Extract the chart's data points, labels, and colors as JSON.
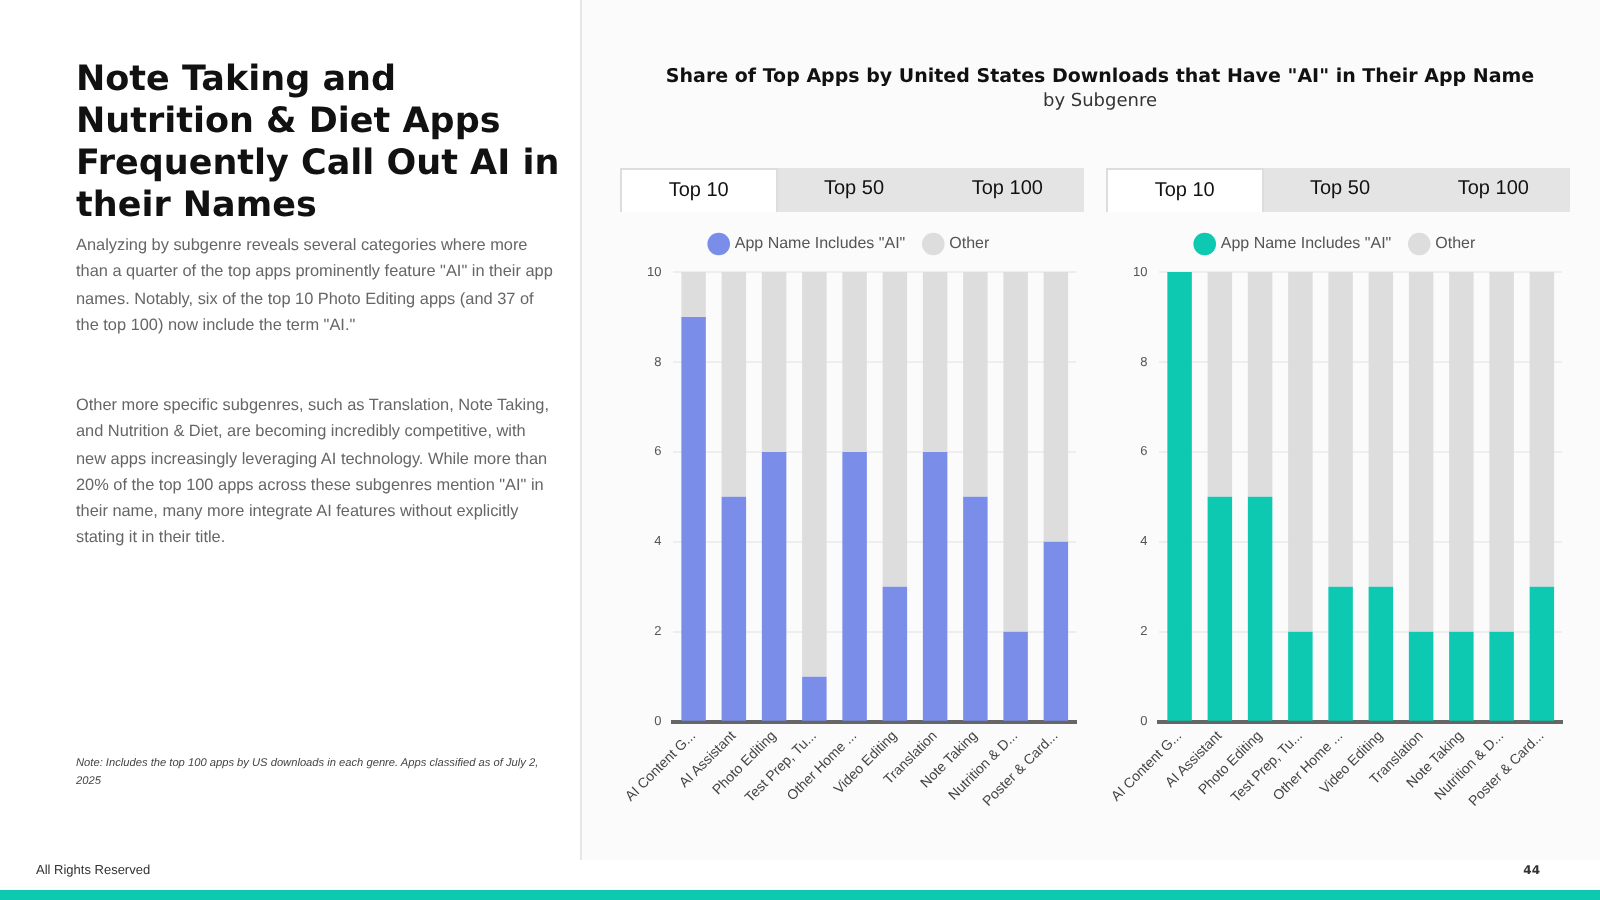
{
  "chart_data": [
    {
      "type": "other",
      "title": "Note Taking and Nutrition & Diet Apps Frequently Call Out AI in their Names",
      "annotations": [
        "Analyzing by subgenre reveals several categories where more than a quarter of the top apps prominently feature \"AI\" in their app names. Notably, six of the top 10 Photo Editing apps (and 37 of the top 100) now include the term \"AI.\"",
        "Other more specific subgenres, such as Translation, Note Taking, and Nutrition & Diet, are becoming incredibly competitive, with new apps increasingly leveraging AI technology. While more than 20% of the top 100 apps across these subgenres mention \"AI\" in their name, many more integrate AI features without explicitly stating it in their title.",
        "Note: Includes the top 100 apps by US downloads in each genre. Apps classified as of July 2, 2025",
        "All Rights Reserved",
        "44"
      ]
    },
    {
      "type": "other",
      "title": "Share of Top Apps by United States Downloads that Have \"AI\" in Their App Name",
      "subtitle": "by Subgenre"
    },
    {
      "type": "bar",
      "stacked": true,
      "categories": [
        "AI Content G...",
        "AI Assistant",
        "Photo Editing",
        "Test Prep, Tu...",
        "Other Home ...",
        "Video Editing",
        "Translation",
        "Note Taking",
        "Nutrition & D...",
        "Poster & Card..."
      ],
      "series": [
        {
          "name": "App Name Includes \"AI\"",
          "color": "#7a8ee9",
          "values": [
            9,
            5,
            6,
            1,
            6,
            3,
            6,
            5,
            2,
            4
          ]
        },
        {
          "name": "Other",
          "color": "#dddddd",
          "values": [
            1,
            5,
            4,
            9,
            4,
            7,
            4,
            5,
            8,
            6
          ]
        }
      ],
      "ylim": [
        0,
        10
      ],
      "yticks": [
        0,
        2,
        4,
        6,
        8,
        10
      ],
      "grid": "y",
      "legend": "top",
      "annotations": [
        "Top 10",
        "Top 50",
        "Top 100"
      ]
    },
    {
      "type": "bar",
      "stacked": true,
      "categories": [
        "AI Content G...",
        "AI Assistant",
        "Photo Editing",
        "Test Prep, Tu...",
        "Other Home ...",
        "Video Editing",
        "Translation",
        "Note Taking",
        "Nutrition & D...",
        "Poster & Card..."
      ],
      "series": [
        {
          "name": "App Name Includes \"AI\"",
          "color": "#0dc9b1",
          "values": [
            10,
            5,
            5,
            2,
            3,
            3,
            2,
            2,
            2,
            3
          ]
        },
        {
          "name": "Other",
          "color": "#dddddd",
          "values": [
            0,
            5,
            5,
            8,
            7,
            7,
            8,
            8,
            8,
            7
          ]
        }
      ],
      "ylim": [
        0,
        10
      ],
      "yticks": [
        0,
        2,
        4,
        6,
        8,
        10
      ],
      "grid": "y",
      "legend": "top",
      "annotations": [
        "Top 10",
        "Top 50",
        "Top 100"
      ]
    }
  ]
}
